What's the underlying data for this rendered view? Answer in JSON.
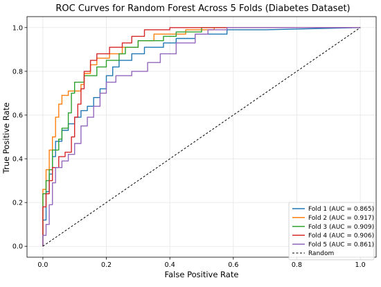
{
  "chart_data": {
    "type": "line",
    "title": "ROC Curves for Random Forest Across 5 Folds (Diabetes Dataset)",
    "xlabel": "False Positive Rate",
    "ylabel": "True Positive Rate",
    "xlim": [
      -0.05,
      1.05
    ],
    "ylim": [
      -0.05,
      1.05
    ],
    "xticks": [
      "0.0",
      "0.2",
      "0.4",
      "0.6",
      "0.8",
      "1.0"
    ],
    "yticks": [
      "0.0",
      "0.2",
      "0.4",
      "0.6",
      "0.8",
      "1.0"
    ],
    "grid": true,
    "legend_position": "lower-right",
    "series": [
      {
        "name": "Fold 1 (AUC = 0.865)",
        "color": "#1f77b4",
        "points": [
          [
            0,
            0
          ],
          [
            0,
            0.12
          ],
          [
            0.01,
            0.12
          ],
          [
            0.01,
            0.25
          ],
          [
            0.02,
            0.25
          ],
          [
            0.02,
            0.33
          ],
          [
            0.03,
            0.33
          ],
          [
            0.03,
            0.41
          ],
          [
            0.04,
            0.41
          ],
          [
            0.04,
            0.48
          ],
          [
            0.06,
            0.48
          ],
          [
            0.06,
            0.53
          ],
          [
            0.08,
            0.53
          ],
          [
            0.08,
            0.56
          ],
          [
            0.1,
            0.56
          ],
          [
            0.1,
            0.59
          ],
          [
            0.12,
            0.59
          ],
          [
            0.12,
            0.62
          ],
          [
            0.14,
            0.62
          ],
          [
            0.14,
            0.64
          ],
          [
            0.16,
            0.64
          ],
          [
            0.16,
            0.68
          ],
          [
            0.18,
            0.68
          ],
          [
            0.18,
            0.72
          ],
          [
            0.2,
            0.72
          ],
          [
            0.2,
            0.78
          ],
          [
            0.22,
            0.78
          ],
          [
            0.22,
            0.82
          ],
          [
            0.24,
            0.82
          ],
          [
            0.24,
            0.85
          ],
          [
            0.28,
            0.85
          ],
          [
            0.28,
            0.88
          ],
          [
            0.32,
            0.88
          ],
          [
            0.32,
            0.91
          ],
          [
            0.38,
            0.91
          ],
          [
            0.38,
            0.93
          ],
          [
            0.42,
            0.93
          ],
          [
            0.42,
            0.95
          ],
          [
            0.48,
            0.95
          ],
          [
            0.48,
            0.97
          ],
          [
            0.58,
            0.97
          ],
          [
            0.58,
            0.99
          ],
          [
            0.7,
            0.99
          ],
          [
            1.0,
            1.0
          ]
        ]
      },
      {
        "name": "Fold 2 (AUC = 0.917)",
        "color": "#ff7f0e",
        "points": [
          [
            0,
            0
          ],
          [
            0,
            0.26
          ],
          [
            0.01,
            0.26
          ],
          [
            0.01,
            0.35
          ],
          [
            0.02,
            0.35
          ],
          [
            0.02,
            0.44
          ],
          [
            0.03,
            0.44
          ],
          [
            0.03,
            0.5
          ],
          [
            0.04,
            0.5
          ],
          [
            0.04,
            0.59
          ],
          [
            0.05,
            0.59
          ],
          [
            0.05,
            0.65
          ],
          [
            0.06,
            0.65
          ],
          [
            0.06,
            0.69
          ],
          [
            0.08,
            0.69
          ],
          [
            0.08,
            0.71
          ],
          [
            0.12,
            0.71
          ],
          [
            0.12,
            0.74
          ],
          [
            0.13,
            0.74
          ],
          [
            0.13,
            0.79
          ],
          [
            0.15,
            0.79
          ],
          [
            0.15,
            0.83
          ],
          [
            0.17,
            0.83
          ],
          [
            0.17,
            0.86
          ],
          [
            0.21,
            0.86
          ],
          [
            0.21,
            0.88
          ],
          [
            0.25,
            0.88
          ],
          [
            0.25,
            0.91
          ],
          [
            0.3,
            0.91
          ],
          [
            0.3,
            0.94
          ],
          [
            0.35,
            0.94
          ],
          [
            0.35,
            0.97
          ],
          [
            0.45,
            0.97
          ],
          [
            0.45,
            0.99
          ],
          [
            0.54,
            0.99
          ],
          [
            0.54,
            1.0
          ],
          [
            1.0,
            1.0
          ]
        ]
      },
      {
        "name": "Fold 3 (AUC = 0.909)",
        "color": "#2ca02c",
        "points": [
          [
            0,
            0
          ],
          [
            0,
            0.24
          ],
          [
            0.01,
            0.24
          ],
          [
            0.01,
            0.3
          ],
          [
            0.02,
            0.3
          ],
          [
            0.02,
            0.35
          ],
          [
            0.03,
            0.35
          ],
          [
            0.03,
            0.44
          ],
          [
            0.05,
            0.44
          ],
          [
            0.05,
            0.49
          ],
          [
            0.06,
            0.49
          ],
          [
            0.06,
            0.54
          ],
          [
            0.08,
            0.54
          ],
          [
            0.08,
            0.61
          ],
          [
            0.09,
            0.61
          ],
          [
            0.09,
            0.7
          ],
          [
            0.1,
            0.7
          ],
          [
            0.1,
            0.75
          ],
          [
            0.13,
            0.75
          ],
          [
            0.13,
            0.78
          ],
          [
            0.17,
            0.78
          ],
          [
            0.17,
            0.82
          ],
          [
            0.2,
            0.82
          ],
          [
            0.2,
            0.85
          ],
          [
            0.24,
            0.85
          ],
          [
            0.24,
            0.88
          ],
          [
            0.26,
            0.88
          ],
          [
            0.26,
            0.91
          ],
          [
            0.3,
            0.91
          ],
          [
            0.3,
            0.94
          ],
          [
            0.38,
            0.94
          ],
          [
            0.38,
            0.96
          ],
          [
            0.42,
            0.96
          ],
          [
            0.42,
            0.98
          ],
          [
            0.5,
            0.98
          ],
          [
            0.5,
            1.0
          ],
          [
            1.0,
            1.0
          ]
        ]
      },
      {
        "name": "Fold 4 (AUC = 0.906)",
        "color": "#d62728",
        "points": [
          [
            0,
            0
          ],
          [
            0,
            0.18
          ],
          [
            0.01,
            0.18
          ],
          [
            0.01,
            0.24
          ],
          [
            0.02,
            0.24
          ],
          [
            0.02,
            0.3
          ],
          [
            0.03,
            0.3
          ],
          [
            0.03,
            0.36
          ],
          [
            0.05,
            0.36
          ],
          [
            0.05,
            0.41
          ],
          [
            0.07,
            0.41
          ],
          [
            0.07,
            0.43
          ],
          [
            0.09,
            0.43
          ],
          [
            0.09,
            0.5
          ],
          [
            0.1,
            0.5
          ],
          [
            0.1,
            0.59
          ],
          [
            0.11,
            0.59
          ],
          [
            0.11,
            0.65
          ],
          [
            0.12,
            0.65
          ],
          [
            0.12,
            0.72
          ],
          [
            0.13,
            0.72
          ],
          [
            0.13,
            0.8
          ],
          [
            0.15,
            0.8
          ],
          [
            0.15,
            0.85
          ],
          [
            0.17,
            0.85
          ],
          [
            0.17,
            0.88
          ],
          [
            0.21,
            0.88
          ],
          [
            0.21,
            0.91
          ],
          [
            0.25,
            0.91
          ],
          [
            0.25,
            0.93
          ],
          [
            0.28,
            0.93
          ],
          [
            0.28,
            0.96
          ],
          [
            0.32,
            0.96
          ],
          [
            0.32,
            0.99
          ],
          [
            0.4,
            0.99
          ],
          [
            0.4,
            1.0
          ],
          [
            1.0,
            1.0
          ]
        ]
      },
      {
        "name": "Fold 5 (AUC = 0.861)",
        "color": "#9467bd",
        "points": [
          [
            0,
            0
          ],
          [
            0,
            0.05
          ],
          [
            0.01,
            0.05
          ],
          [
            0.01,
            0.1
          ],
          [
            0.02,
            0.1
          ],
          [
            0.02,
            0.19
          ],
          [
            0.03,
            0.19
          ],
          [
            0.03,
            0.29
          ],
          [
            0.04,
            0.29
          ],
          [
            0.04,
            0.36
          ],
          [
            0.06,
            0.36
          ],
          [
            0.06,
            0.39
          ],
          [
            0.08,
            0.39
          ],
          [
            0.08,
            0.42
          ],
          [
            0.1,
            0.42
          ],
          [
            0.1,
            0.47
          ],
          [
            0.12,
            0.47
          ],
          [
            0.12,
            0.55
          ],
          [
            0.14,
            0.55
          ],
          [
            0.14,
            0.59
          ],
          [
            0.16,
            0.59
          ],
          [
            0.16,
            0.64
          ],
          [
            0.18,
            0.64
          ],
          [
            0.18,
            0.7
          ],
          [
            0.2,
            0.7
          ],
          [
            0.2,
            0.75
          ],
          [
            0.23,
            0.75
          ],
          [
            0.23,
            0.78
          ],
          [
            0.28,
            0.78
          ],
          [
            0.28,
            0.8
          ],
          [
            0.33,
            0.8
          ],
          [
            0.33,
            0.84
          ],
          [
            0.37,
            0.84
          ],
          [
            0.37,
            0.88
          ],
          [
            0.42,
            0.88
          ],
          [
            0.42,
            0.93
          ],
          [
            0.48,
            0.93
          ],
          [
            0.48,
            0.97
          ],
          [
            0.52,
            0.97
          ],
          [
            0.52,
            0.99
          ],
          [
            0.58,
            0.99
          ],
          [
            0.58,
            1.0
          ],
          [
            1.0,
            1.0
          ]
        ]
      }
    ],
    "baseline": {
      "name": "Random",
      "color": "#000000",
      "style": "dashed",
      "points": [
        [
          0,
          0
        ],
        [
          1,
          1
        ]
      ]
    }
  }
}
